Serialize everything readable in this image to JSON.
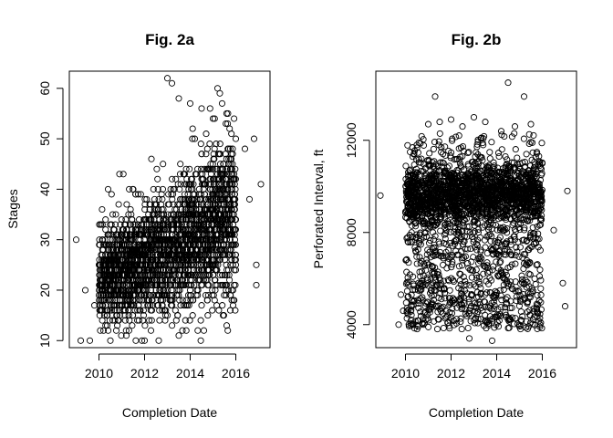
{
  "chart_data": [
    {
      "type": "scatter",
      "title": "Fig. 2a",
      "xlabel": "Completion Date",
      "ylabel": "Stages",
      "xlim": [
        2008.7,
        2017.5
      ],
      "ylim": [
        8.6,
        63.4
      ],
      "xticks": [
        2010,
        2012,
        2014,
        2016
      ],
      "yticks": [
        10,
        20,
        30,
        40,
        50,
        60
      ],
      "grid": false,
      "marker": "open-circle",
      "approx_points": 2600,
      "series": [
        {
          "points": [
            [
              2009.0,
              30
            ],
            [
              2009.2,
              10
            ],
            [
              2009.4,
              20
            ],
            [
              2009.6,
              10
            ],
            [
              2009.8,
              17
            ],
            [
              2010.0,
              25
            ],
            [
              2010.2,
              12
            ],
            [
              2010.4,
              40
            ],
            [
              2010.5,
              10
            ],
            [
              2010.6,
              35
            ],
            [
              2010.9,
              43
            ],
            [
              2011.2,
              11
            ],
            [
              2011.5,
              40
            ],
            [
              2012.0,
              10
            ],
            [
              2012.3,
              46
            ],
            [
              2012.8,
              40
            ],
            [
              2013.0,
              62
            ],
            [
              2013.2,
              61
            ],
            [
              2013.5,
              58
            ],
            [
              2013.5,
              11
            ],
            [
              2014.0,
              57
            ],
            [
              2014.2,
              50
            ],
            [
              2014.5,
              56
            ],
            [
              2014.6,
              12
            ],
            [
              2015.0,
              54
            ],
            [
              2015.2,
              60
            ],
            [
              2015.3,
              59
            ],
            [
              2015.4,
              57
            ],
            [
              2015.6,
              13
            ],
            [
              2016.0,
              50
            ],
            [
              2016.4,
              48
            ],
            [
              2016.6,
              38
            ],
            [
              2016.8,
              50
            ],
            [
              2016.9,
              21
            ],
            [
              2016.9,
              25
            ],
            [
              2017.1,
              41
            ]
          ]
        }
      ],
      "trend": {
        "x": [
          2010.0,
          2011.0,
          2012.0,
          2013.0,
          2014.0,
          2015.0,
          2016.0
        ],
        "y": [
          22,
          24,
          26,
          28,
          30,
          33,
          35
        ]
      }
    },
    {
      "type": "scatter",
      "title": "Fig. 2b",
      "xlabel": "Completion Date",
      "ylabel": "Perforated Interval, ft",
      "xlim": [
        2008.7,
        2017.5
      ],
      "ylim": [
        3000,
        15000
      ],
      "xticks": [
        2010,
        2012,
        2014,
        2016
      ],
      "yticks": [
        4000,
        8000,
        12000
      ],
      "grid": false,
      "marker": "open-circle",
      "approx_points": 2600,
      "series": [
        {
          "points": [
            [
              2008.9,
              9600
            ],
            [
              2009.7,
              4000
            ],
            [
              2009.8,
              5300
            ],
            [
              2009.9,
              4600
            ],
            [
              2010.0,
              8900
            ],
            [
              2010.1,
              5200
            ],
            [
              2010.5,
              11800
            ],
            [
              2011.0,
              12700
            ],
            [
              2011.3,
              13900
            ],
            [
              2011.5,
              12800
            ],
            [
              2012.0,
              12900
            ],
            [
              2012.5,
              12600
            ],
            [
              2012.8,
              3400
            ],
            [
              2013.0,
              13000
            ],
            [
              2013.5,
              12800
            ],
            [
              2013.8,
              3300
            ],
            [
              2014.2,
              12400
            ],
            [
              2014.5,
              14500
            ],
            [
              2014.8,
              12600
            ],
            [
              2015.2,
              13900
            ],
            [
              2015.5,
              12700
            ],
            [
              2015.9,
              4000
            ],
            [
              2016.0,
              11000
            ],
            [
              2016.5,
              8100
            ],
            [
              2016.9,
              5800
            ],
            [
              2017.0,
              4800
            ],
            [
              2017.1,
              9800
            ]
          ]
        }
      ],
      "main_band": {
        "x": [
          2010.0,
          2016.0
        ],
        "y": [
          9000,
          10400
        ]
      },
      "low_band": {
        "x": [
          2010.0,
          2016.0
        ],
        "y": [
          3800,
          5400
        ]
      }
    }
  ]
}
